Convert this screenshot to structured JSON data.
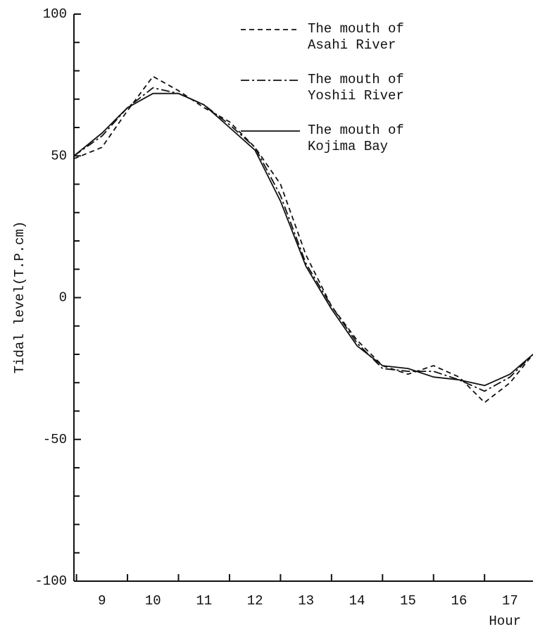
{
  "chart_data": {
    "type": "line",
    "y_label": "Tidal level(T.P.cm)",
    "x_label": "Hour",
    "x": [
      8.45,
      9,
      9.5,
      10,
      10.5,
      11,
      11.5,
      12,
      12.5,
      13,
      13.5,
      14,
      14.5,
      15,
      15.5,
      16,
      16.5,
      17,
      17.45
    ],
    "series": [
      {
        "name": "The mouth of\nAsahi River",
        "color": "#111111",
        "style": "dashed",
        "values": [
          49,
          53,
          66,
          78,
          73,
          67,
          62,
          53,
          40,
          15,
          -3,
          -15,
          -24,
          -27,
          -24,
          -28,
          -37,
          -30,
          -20
        ]
      },
      {
        "name": "The mouth of\nYoshii River",
        "color": "#111111",
        "style": "dashdot",
        "values": [
          50,
          57,
          67,
          74,
          72,
          68,
          61,
          53,
          36,
          12,
          -3,
          -16,
          -25,
          -26,
          -26,
          -29,
          -33,
          -28,
          -20
        ]
      },
      {
        "name": "The mouth of\nKojima Bay",
        "color": "#111111",
        "style": "solid",
        "values": [
          50,
          58,
          67,
          72,
          72,
          68,
          60,
          52,
          34,
          11,
          -4,
          -17,
          -24,
          -25,
          -28,
          -29,
          -31,
          -27,
          -20
        ]
      }
    ],
    "xlim": [
      8.45,
      17.45
    ],
    "ylim": [
      -100,
      100
    ],
    "xticks": [
      9,
      10,
      11,
      12,
      13,
      14,
      15,
      16,
      17
    ],
    "x_minor_ticks": [
      8.5,
      9.5,
      10.5,
      11.5,
      12.5,
      13.5,
      14.5,
      15.5,
      16.5
    ],
    "yticks": [
      -100,
      -50,
      0,
      50,
      100
    ],
    "y_minor_ticks": [
      -90,
      -80,
      -70,
      -60,
      -40,
      -30,
      -20,
      -10,
      10,
      20,
      30,
      40,
      60,
      70,
      80,
      90
    ],
    "legend": "top-right",
    "grid": false
  }
}
